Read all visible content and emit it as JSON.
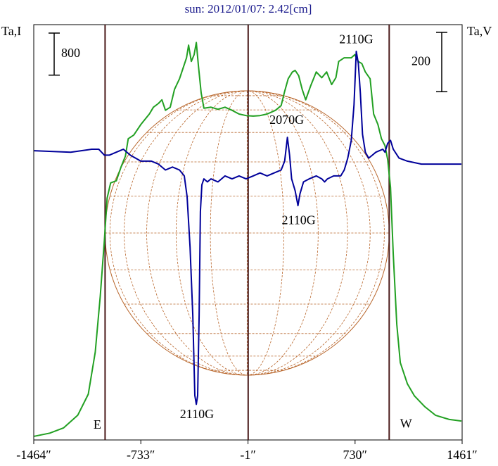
{
  "chart_data": {
    "type": "line",
    "title": "sun: 2012/01/07: 2.42[cm]",
    "ylabel": "Ta,I",
    "y2label": "Ta,V",
    "xlim": [
      -1464,
      1461
    ],
    "xticks": [
      {
        "value": -1464,
        "label": "-1464″"
      },
      {
        "value": -733,
        "label": "-733″"
      },
      {
        "value": -1,
        "label": "-1″"
      },
      {
        "value": 730,
        "label": "730″"
      },
      {
        "value": 1461,
        "label": "1461″"
      }
    ],
    "ylim": [
      0,
      7900
    ],
    "y2lim": [
      -1000,
      400
    ],
    "scale_bars": [
      {
        "value": 800,
        "axis": "y"
      },
      {
        "value": 200,
        "axis": "y2"
      }
    ],
    "vlines": [
      -977,
      0,
      963
    ],
    "series": [
      {
        "color": "#22a022",
        "axis": "y",
        "x": [
          -1461,
          -1355,
          -1260,
          -1164,
          -1092,
          -1044,
          -1010,
          -982,
          -963,
          -939,
          -900,
          -867,
          -838,
          -819,
          -781,
          -733,
          -675,
          -647,
          -613,
          -589,
          -565,
          -532,
          -503,
          -469,
          -445,
          -421,
          -407,
          -388,
          -369,
          -354,
          -340,
          -321,
          -302,
          -254,
          -206,
          -158,
          -110,
          -62,
          -14,
          34,
          81,
          129,
          187,
          225,
          249,
          273,
          302,
          321,
          345,
          369,
          393,
          426,
          465,
          503,
          536,
          570,
          599,
          618,
          656,
          704,
          728,
          752,
          776,
          800,
          833,
          857,
          886,
          910,
          934,
          953,
          972,
          991,
          1015,
          1039,
          1087,
          1135,
          1207,
          1279,
          1374,
          1456
        ],
        "values": [
          70,
          130,
          230,
          470,
          870,
          1670,
          2730,
          3800,
          4600,
          4890,
          4930,
          5200,
          5400,
          5730,
          5800,
          6000,
          6200,
          6330,
          6400,
          6470,
          6270,
          6330,
          6670,
          6870,
          7070,
          7270,
          7510,
          7200,
          7330,
          7560,
          7130,
          6600,
          6310,
          6330,
          6290,
          6330,
          6270,
          6200,
          6170,
          6160,
          6170,
          6200,
          6270,
          6360,
          6630,
          6870,
          7000,
          7030,
          6930,
          6670,
          6470,
          6730,
          7000,
          6890,
          7000,
          6760,
          6890,
          7200,
          7270,
          7270,
          7330,
          7200,
          7160,
          7000,
          6870,
          6200,
          6000,
          5730,
          5600,
          5330,
          4800,
          3530,
          2200,
          1470,
          1070,
          840,
          630,
          470,
          390,
          360
        ]
      },
      {
        "color": "#00009a",
        "axis": "y2",
        "x": [
          -1461,
          -1212,
          -1068,
          -1020,
          -982,
          -948,
          -900,
          -852,
          -805,
          -733,
          -661,
          -613,
          -565,
          -517,
          -469,
          -436,
          -417,
          -397,
          -378,
          -364,
          -354,
          -345,
          -335,
          -326,
          -316,
          -302,
          -278,
          -254,
          -206,
          -158,
          -110,
          -62,
          -14,
          34,
          81,
          129,
          177,
          225,
          249,
          268,
          283,
          297,
          321,
          340,
          354,
          378,
          417,
          465,
          503,
          522,
          541,
          584,
          632,
          656,
          680,
          704,
          723,
          738,
          752,
          766,
          781,
          800,
          823,
          848,
          872,
          919,
          934,
          953,
          972,
          991,
          1030,
          1087,
          1183,
          1327,
          1456
        ],
        "values": [
          -25,
          -30,
          -20,
          -20,
          -40,
          -40,
          -30,
          -20,
          -40,
          -60,
          -60,
          -70,
          -90,
          -80,
          -90,
          -110,
          -180,
          -350,
          -580,
          -850,
          -880,
          -850,
          -580,
          -230,
          -140,
          -120,
          -130,
          -120,
          -130,
          -110,
          -120,
          -110,
          -120,
          -110,
          -100,
          -110,
          -100,
          -90,
          -60,
          20,
          -40,
          -120,
          -160,
          -210,
          -170,
          -130,
          -120,
          -110,
          -120,
          -130,
          -120,
          -110,
          -110,
          -90,
          -50,
          10,
          130,
          310,
          270,
          170,
          30,
          -30,
          -50,
          -40,
          -30,
          -20,
          -30,
          0,
          10,
          -20,
          -50,
          -60,
          -70,
          -70,
          -70
        ]
      }
    ],
    "annotations": [
      {
        "text": "2110G",
        "x": 738,
        "y": 7600
      },
      {
        "text": "2070G",
        "x": 263,
        "y": 6070
      },
      {
        "text": "2110G",
        "x": 345,
        "y": 4160
      },
      {
        "text": "2110G",
        "x": -350,
        "y": 470
      },
      {
        "text": "E",
        "x": -1030,
        "y": 270
      },
      {
        "text": "W",
        "x": 1078,
        "y": 290
      }
    ]
  }
}
